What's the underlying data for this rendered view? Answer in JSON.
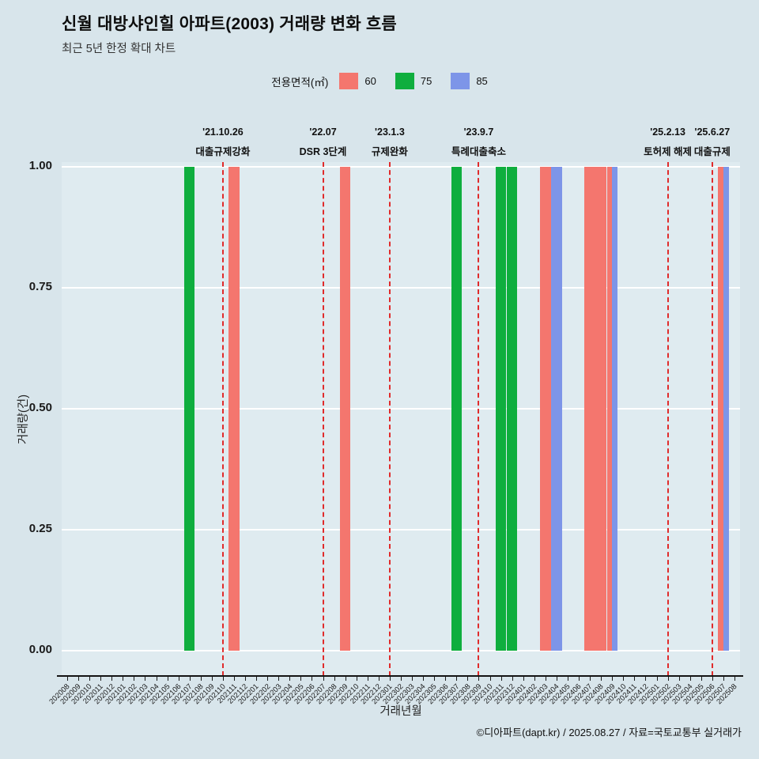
{
  "title": "신월 대방샤인힐 아파트(2003) 거래량 변화 흐름",
  "subtitle": "최근 5년 한정 확대 차트",
  "legend": {
    "label": "전용면적(㎡)",
    "items": [
      {
        "name": "60",
        "color": "#f4766e"
      },
      {
        "name": "75",
        "color": "#0fae3e"
      },
      {
        "name": "85",
        "color": "#7d95e8"
      }
    ]
  },
  "footer": "©디아파트(dapt.kr) / 2025.08.27 / 자료=국토교통부 실거래가",
  "chart_data": {
    "type": "bar",
    "title": "신월 대방샤인힐 아파트(2003) 거래량 변화 흐름",
    "subtitle": "최근 5년 한정 확대 차트",
    "xlabel": "거래년월",
    "ylabel": "거래량(건)",
    "ylim": [
      0,
      1.0
    ],
    "yticks": [
      "0.00",
      "0.25",
      "0.50",
      "0.75",
      "1.00"
    ],
    "grid": true,
    "legend_position": "top",
    "colors": {
      "60": "#f4766e",
      "75": "#0fae3e",
      "85": "#7d95e8"
    },
    "event_line_color": "#e02b2b",
    "categories": [
      "202008",
      "202009",
      "202010",
      "202011",
      "202012",
      "202101",
      "202102",
      "202103",
      "202104",
      "202105",
      "202106",
      "202107",
      "202108",
      "202109",
      "202110",
      "202111",
      "202112",
      "202201",
      "202202",
      "202203",
      "202204",
      "202205",
      "202206",
      "202207",
      "202208",
      "202209",
      "202210",
      "202211",
      "202212",
      "202301",
      "202302",
      "202303",
      "202304",
      "202305",
      "202306",
      "202307",
      "202308",
      "202309",
      "202310",
      "202311",
      "202312",
      "202401",
      "202402",
      "202403",
      "202404",
      "202405",
      "202406",
      "202407",
      "202408",
      "202409",
      "202410",
      "202411",
      "202412",
      "202501",
      "202502",
      "202503",
      "202504",
      "202505",
      "202506",
      "202507",
      "202508"
    ],
    "bars": [
      {
        "month": "202107",
        "area": "75",
        "value": 1
      },
      {
        "month": "202111",
        "area": "60",
        "value": 1
      },
      {
        "month": "202209",
        "area": "60",
        "value": 1
      },
      {
        "month": "202307",
        "area": "75",
        "value": 1
      },
      {
        "month": "202311",
        "area": "75",
        "value": 1
      },
      {
        "month": "202312",
        "area": "75",
        "value": 1
      },
      {
        "month": "202403",
        "area": "60",
        "value": 1
      },
      {
        "month": "202404",
        "area": "85",
        "value": 1
      },
      {
        "month": "202407",
        "area": "60",
        "value": 1
      },
      {
        "month": "202408",
        "area": "60",
        "value": 1
      },
      {
        "month": "202409",
        "area": "60",
        "value": 1
      },
      {
        "month": "202409",
        "area": "85",
        "value": 1
      },
      {
        "month": "202507",
        "area": "60",
        "value": 1
      },
      {
        "month": "202507",
        "area": "85",
        "value": 1
      }
    ],
    "events": [
      {
        "date": "'21.10.26",
        "label": "대출규제강화",
        "month": "202110"
      },
      {
        "date": "'22.07",
        "label": "DSR 3단계",
        "month": "202207"
      },
      {
        "date": "'23.1.3",
        "label": "규제완화",
        "month": "202301"
      },
      {
        "date": "'23.9.7",
        "label": "특례대출축소",
        "month": "202309"
      },
      {
        "date": "'25.2.13",
        "label": "토허제 해제",
        "month": "202502"
      },
      {
        "date": "'25.6.27",
        "label": "대출규제",
        "month": "202506"
      }
    ]
  }
}
